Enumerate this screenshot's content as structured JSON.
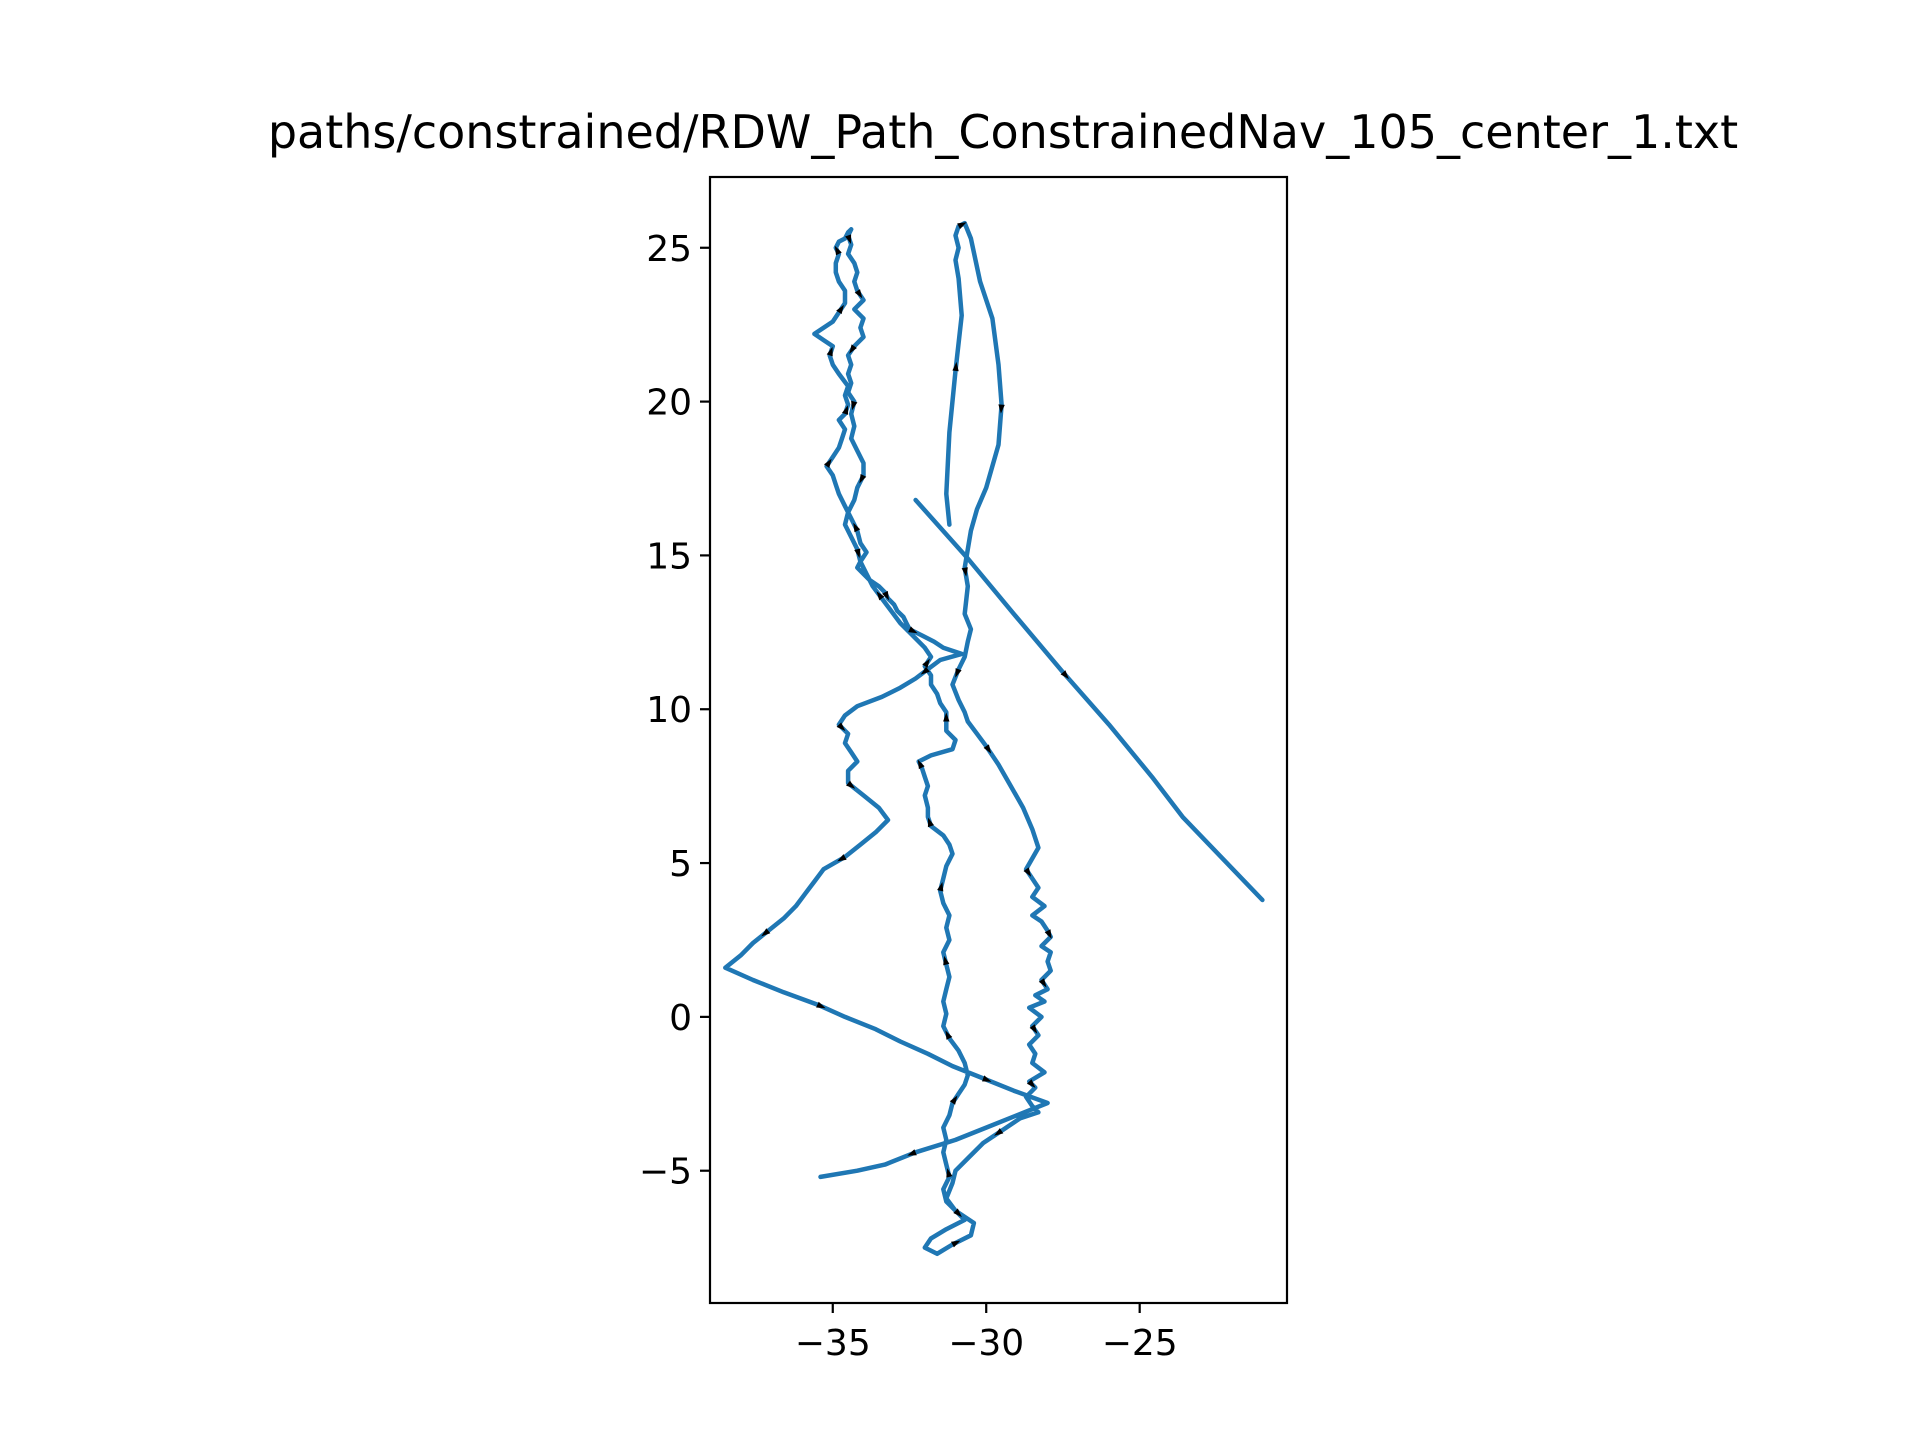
{
  "chart_data": {
    "type": "line",
    "title": "paths/constrained/RDW_Path_ConstrainedNav_105_center_1.txt",
    "xlabel": "",
    "ylabel": "",
    "xlim": [
      -39.0,
      -20.2
    ],
    "ylim": [
      -9.3,
      27.3
    ],
    "xticks": [
      -35,
      -30,
      -25
    ],
    "yticks": [
      -5,
      0,
      5,
      10,
      15,
      20,
      25
    ],
    "xtick_labels": [
      "−35",
      "−30",
      "−25"
    ],
    "ytick_labels": [
      "−5",
      "0",
      "5",
      "10",
      "15",
      "20",
      "25"
    ],
    "grid": false,
    "series": [
      {
        "color": "#1f77b4",
        "x": [
          -32.3,
          -30.6,
          -29.1,
          -27.5,
          -26.0,
          -24.6,
          -23.6,
          -21.0
        ],
        "y": [
          16.8,
          14.9,
          13.1,
          11.2,
          9.5,
          7.8,
          6.5,
          3.8
        ]
      },
      {
        "color": "#1f77b4",
        "x": [
          -31.2,
          -31.3,
          -31.2,
          -31.0,
          -30.8,
          -30.9,
          -31.0,
          -30.9,
          -31.0,
          -30.9,
          -30.7,
          -30.5,
          -30.2,
          -29.8,
          -29.6,
          -29.5,
          -29.6,
          -30.0,
          -30.3,
          -30.5,
          -30.6,
          -30.7,
          -30.6,
          -30.7,
          -30.5,
          -30.6,
          -30.7,
          -30.9,
          -31.1,
          -30.9,
          -30.7,
          -30.6,
          -30.3,
          -30.0,
          -29.6,
          -29.2,
          -28.8,
          -28.5,
          -28.3,
          -28.7,
          -28.3,
          -28.5,
          -28.1,
          -28.5,
          -28.2,
          -28.0,
          -27.9,
          -28.2,
          -27.9,
          -28.0,
          -27.9,
          -28.2,
          -28.0,
          -28.4,
          -28.1,
          -28.6,
          -28.2,
          -28.5,
          -28.3,
          -28.6,
          -28.4,
          -28.5,
          -28.1,
          -28.6,
          -28.4,
          -28.7,
          -28.5,
          -28.3,
          -28.9,
          -29.5,
          -30.1,
          -30.6,
          -31.0,
          -31.1,
          -31.3,
          -31.0,
          -30.7,
          -31.3,
          -31.8,
          -32.0,
          -31.6,
          -31.1,
          -30.5,
          -30.4,
          -31.0,
          -31.3,
          -31.4,
          -31.2,
          -31.3,
          -31.4,
          -31.3,
          -31.4,
          -31.2,
          -31.1,
          -30.9,
          -30.7,
          -30.6,
          -30.7,
          -30.9,
          -31.2,
          -31.4,
          -31.3,
          -31.4,
          -31.3,
          -31.2,
          -31.3,
          -31.4,
          -31.2,
          -31.3,
          -31.2,
          -31.4,
          -31.5,
          -31.4,
          -31.3,
          -31.1,
          -31.2,
          -31.4,
          -31.8,
          -31.9,
          -31.9,
          -32.0,
          -31.9,
          -32.0,
          -32.1,
          -32.2,
          -31.8,
          -31.1,
          -31.0,
          -31.3,
          -31.3,
          -31.3,
          -31.5,
          -31.6,
          -31.8,
          -31.8,
          -32.0,
          -31.8,
          -32.0,
          -32.4,
          -32.8,
          -33.1,
          -33.4,
          -33.7,
          -33.9,
          -34.1,
          -33.9,
          -34.1,
          -34.2,
          -34.4,
          -34.6,
          -34.8,
          -34.9,
          -35.0,
          -35.2,
          -35.0,
          -34.8,
          -34.7,
          -34.6,
          -34.8,
          -34.6,
          -34.5,
          -34.6,
          -34.5,
          -34.8,
          -35.0,
          -35.1,
          -35.0,
          -35.3,
          -35.6,
          -35.3,
          -35.0,
          -34.8,
          -34.6,
          -34.6,
          -34.8,
          -34.9,
          -34.9,
          -34.8,
          -34.9,
          -34.8,
          -34.6,
          -34.5,
          -34.4,
          -34.5,
          -34.4,
          -34.5,
          -34.3,
          -34.2,
          -34.3,
          -34.2,
          -34.0,
          -34.3,
          -34.0,
          -34.1,
          -34.0,
          -34.3,
          -34.5,
          -34.4,
          -34.5,
          -34.4,
          -34.5,
          -34.3,
          -34.4,
          -34.3,
          -34.4,
          -34.2,
          -34.0,
          -34.0,
          -34.2,
          -34.3,
          -34.5,
          -34.6,
          -34.4,
          -34.2,
          -34.1,
          -34.2,
          -34.0,
          -33.8,
          -33.5,
          -33.3,
          -33.2,
          -33.0,
          -32.9,
          -32.7,
          -32.6,
          -32.5,
          -32.1,
          -31.7,
          -31.4,
          -30.8,
          -31.5,
          -31.9,
          -32.3,
          -32.8,
          -33.4,
          -34.2,
          -34.6,
          -34.8,
          -34.5,
          -34.6,
          -34.4,
          -34.2,
          -34.5,
          -34.5,
          -34.0,
          -33.5,
          -33.2,
          -33.6,
          -34.1,
          -34.6,
          -35.3,
          -35.6,
          -35.9,
          -36.2,
          -36.6,
          -37.1,
          -37.6,
          -38.0,
          -38.5,
          -37.6,
          -36.6,
          -35.5,
          -34.6,
          -33.6,
          -32.8,
          -31.9,
          -31.1,
          -30.1,
          -29.1,
          -28.0,
          -29.0,
          -30.0,
          -31.0,
          -32.3,
          -33.3,
          -34.2,
          -35.4
        ],
        "y": [
          16.0,
          17.0,
          19.0,
          21.0,
          22.8,
          24.0,
          24.6,
          25.0,
          25.4,
          25.7,
          25.8,
          25.3,
          23.9,
          22.7,
          21.2,
          19.9,
          18.6,
          17.2,
          16.5,
          15.8,
          15.2,
          14.6,
          14.0,
          13.1,
          12.6,
          12.2,
          11.7,
          11.3,
          10.8,
          10.3,
          9.9,
          9.6,
          9.2,
          8.8,
          8.2,
          7.5,
          6.8,
          6.1,
          5.5,
          4.8,
          4.2,
          3.9,
          3.6,
          3.3,
          3.1,
          2.8,
          2.6,
          2.3,
          2.1,
          1.8,
          1.5,
          1.2,
          0.9,
          0.7,
          0.5,
          0.3,
          0.0,
          -0.3,
          -0.6,
          -0.9,
          -1.2,
          -1.5,
          -1.8,
          -2.1,
          -2.3,
          -2.6,
          -2.9,
          -3.1,
          -3.3,
          -3.7,
          -4.1,
          -4.6,
          -5.0,
          -5.4,
          -5.9,
          -6.3,
          -6.6,
          -6.9,
          -7.2,
          -7.5,
          -7.7,
          -7.4,
          -7.1,
          -6.7,
          -6.3,
          -6.0,
          -5.6,
          -5.2,
          -4.8,
          -4.4,
          -4.0,
          -3.6,
          -3.2,
          -2.8,
          -2.5,
          -2.2,
          -1.9,
          -1.5,
          -1.1,
          -0.7,
          -0.3,
          0.1,
          0.5,
          0.9,
          1.3,
          1.7,
          2.1,
          2.5,
          2.9,
          3.3,
          3.7,
          4.1,
          4.5,
          4.9,
          5.3,
          5.6,
          5.9,
          6.2,
          6.5,
          6.8,
          7.2,
          7.5,
          7.8,
          8.1,
          8.3,
          8.5,
          8.7,
          9.0,
          9.3,
          9.6,
          9.9,
          10.2,
          10.5,
          10.8,
          11.1,
          11.4,
          11.7,
          12.0,
          12.4,
          12.8,
          13.2,
          13.6,
          14.0,
          14.4,
          14.8,
          15.1,
          15.4,
          15.8,
          16.2,
          16.6,
          17.0,
          17.3,
          17.6,
          17.9,
          18.2,
          18.5,
          18.8,
          19.1,
          19.4,
          19.6,
          19.9,
          20.2,
          20.5,
          20.9,
          21.2,
          21.5,
          21.8,
          22.0,
          22.2,
          22.4,
          22.6,
          22.9,
          23.2,
          23.6,
          23.9,
          24.2,
          24.5,
          24.8,
          25.0,
          25.2,
          25.3,
          25.5,
          25.6,
          25.4,
          25.1,
          24.8,
          24.5,
          24.2,
          23.9,
          23.6,
          23.3,
          23.0,
          22.7,
          22.4,
          22.1,
          21.8,
          21.5,
          21.2,
          20.9,
          20.6,
          20.3,
          20.0,
          19.6,
          19.2,
          18.8,
          18.4,
          18.0,
          17.6,
          17.2,
          16.8,
          16.4,
          16.0,
          15.6,
          15.2,
          14.8,
          14.6,
          14.4,
          14.2,
          14.0,
          13.8,
          13.6,
          13.4,
          13.2,
          13.0,
          12.8,
          12.6,
          12.4,
          12.2,
          12.0,
          11.8,
          11.6,
          11.3,
          11.0,
          10.7,
          10.4,
          10.1,
          9.8,
          9.5,
          9.2,
          8.9,
          8.6,
          8.3,
          8.0,
          7.6,
          7.2,
          6.8,
          6.4,
          6.0,
          5.6,
          5.2,
          4.8,
          4.4,
          4.0,
          3.6,
          3.2,
          2.8,
          2.4,
          2.0,
          1.6,
          1.2,
          0.8,
          0.4,
          0.0,
          -0.4,
          -0.8,
          -1.2,
          -1.6,
          -2.0,
          -2.4,
          -2.8,
          -3.2,
          -3.6,
          -4.0,
          -4.4,
          -4.8,
          -5.0,
          -5.2
        ]
      }
    ]
  }
}
